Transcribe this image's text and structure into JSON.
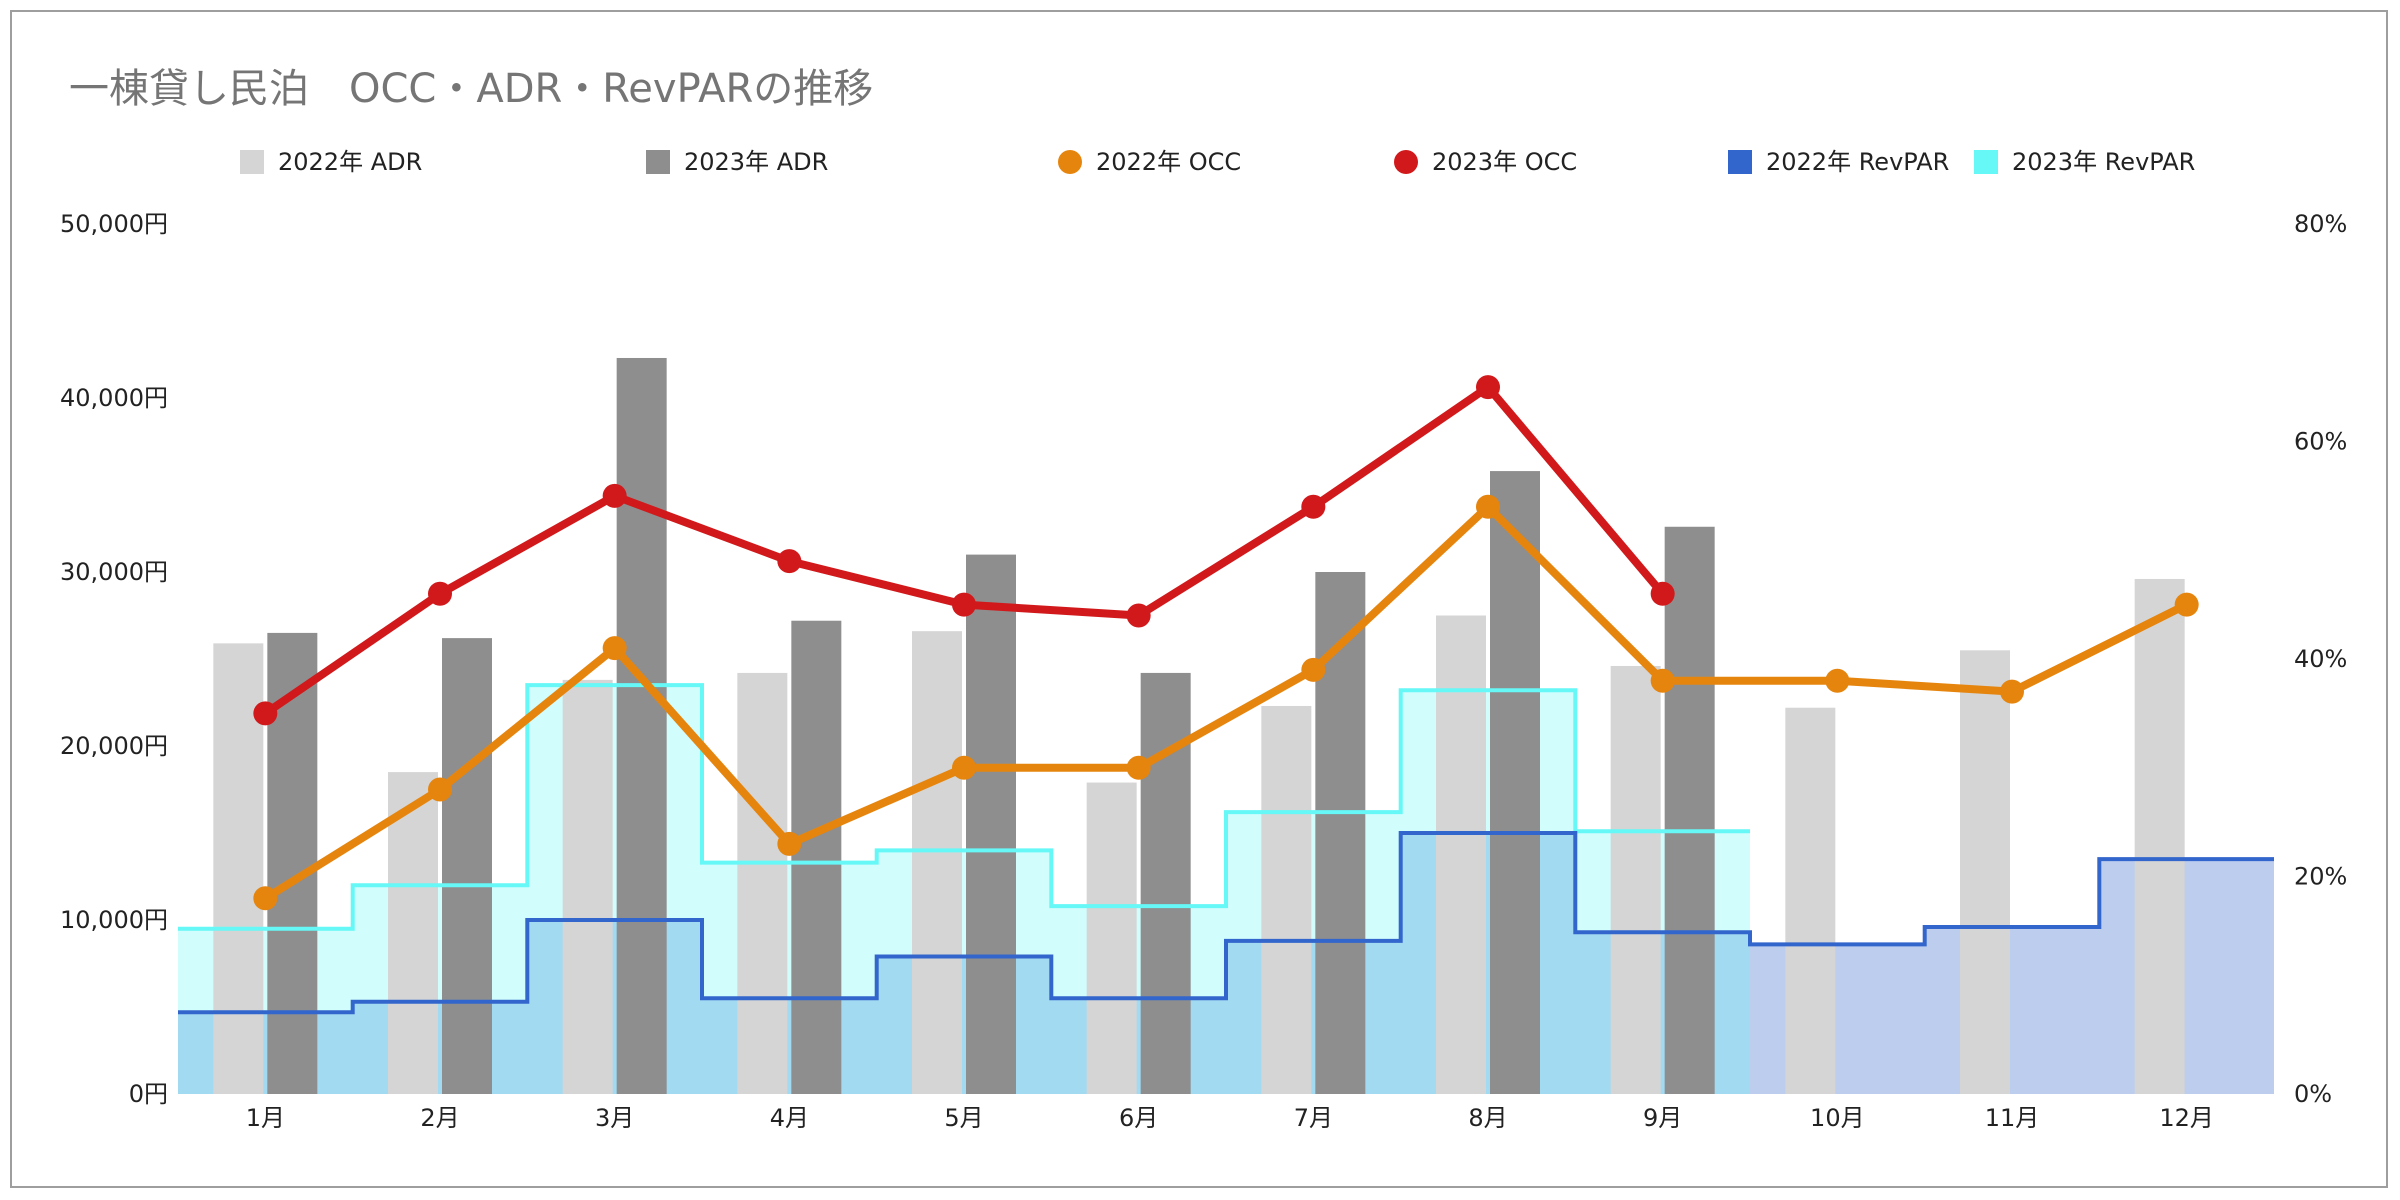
{
  "chart_data": {
    "type": "combo",
    "title": "一棟貸し民泊　OCC・ADR・RevPARの推移",
    "categories": [
      "1月",
      "2月",
      "3月",
      "4月",
      "5月",
      "6月",
      "7月",
      "8月",
      "9月",
      "10月",
      "11月",
      "12月"
    ],
    "left_axis": {
      "ylim": [
        0,
        50000
      ],
      "ticks": [
        "0円",
        "10,000円",
        "20,000円",
        "30,000円",
        "40,000円",
        "50,000円"
      ],
      "tick_values": [
        0,
        10000,
        20000,
        30000,
        40000,
        50000
      ]
    },
    "right_axis": {
      "ylim": [
        0,
        80
      ],
      "ticks": [
        "0%",
        "20%",
        "40%",
        "60%",
        "80%"
      ],
      "tick_values": [
        0,
        20,
        40,
        60,
        80
      ]
    },
    "series": [
      {
        "name": "2022年 ADR",
        "kind": "bar",
        "axis": "left",
        "color": "#d5d5d5",
        "values": [
          25900,
          18500,
          23800,
          24200,
          26600,
          17900,
          22300,
          27500,
          24600,
          22200,
          25500,
          29600
        ]
      },
      {
        "name": "2023年 ADR",
        "kind": "bar",
        "axis": "left",
        "color": "#8e8e8e",
        "values": [
          26500,
          26200,
          42300,
          27200,
          31000,
          24200,
          30000,
          35800,
          32600,
          null,
          null,
          null
        ]
      },
      {
        "name": "2022年 OCC",
        "kind": "line",
        "axis": "right",
        "color": "#e6850e",
        "values": [
          18,
          28,
          41,
          23,
          30,
          30,
          39,
          54,
          38,
          38,
          37,
          45
        ]
      },
      {
        "name": "2023年 OCC",
        "kind": "line",
        "axis": "right",
        "color": "#d1191b",
        "values": [
          35,
          46,
          55,
          49,
          45,
          44,
          54,
          65,
          46,
          null,
          null,
          null
        ]
      },
      {
        "name": "2022年 RevPAR",
        "kind": "stepped-area",
        "axis": "left",
        "color": "#3366cc",
        "values": [
          4700,
          5300,
          10000,
          5500,
          7900,
          5500,
          8800,
          15000,
          9300,
          8600,
          9600,
          13500
        ]
      },
      {
        "name": "2023年 RevPAR",
        "kind": "stepped-area",
        "axis": "left",
        "color": "#66f7f7",
        "values": [
          9500,
          12000,
          23500,
          13300,
          14000,
          10800,
          16200,
          23200,
          15100,
          null,
          null,
          null
        ]
      }
    ]
  }
}
